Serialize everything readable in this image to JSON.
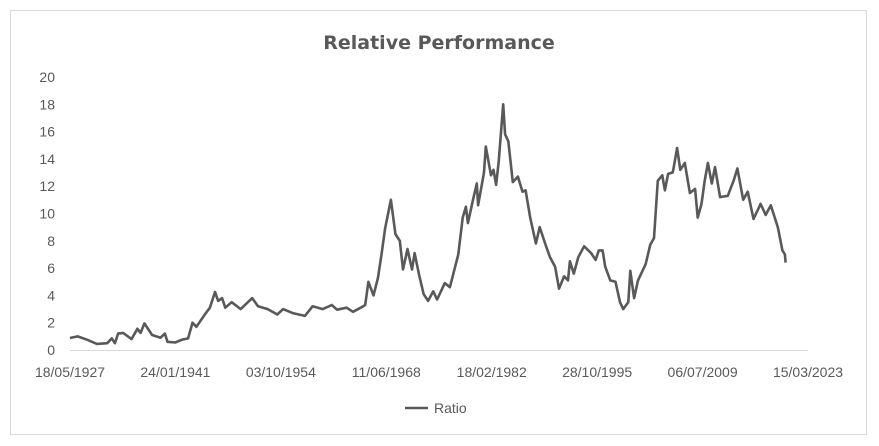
{
  "chart_data": {
    "type": "line",
    "title": "Relative Performance",
    "xlabel": "",
    "ylabel": "",
    "ylim": [
      0,
      20
    ],
    "yticks": [
      0,
      2,
      4,
      6,
      8,
      10,
      12,
      14,
      16,
      18,
      20
    ],
    "xlim": [
      "1927-05-18",
      "2023-03-15"
    ],
    "xticks": [
      {
        "date": "1927-05-18",
        "label": "18/05/1927"
      },
      {
        "date": "1941-01-24",
        "label": "24/01/1941"
      },
      {
        "date": "1954-10-03",
        "label": "03/10/1954"
      },
      {
        "date": "1968-06-11",
        "label": "11/06/1968"
      },
      {
        "date": "1982-02-18",
        "label": "18/02/1982"
      },
      {
        "date": "1995-10-28",
        "label": "28/10/1995"
      },
      {
        "date": "2009-07-06",
        "label": "06/07/2009"
      },
      {
        "date": "2023-03-15",
        "label": "15/03/2023"
      }
    ],
    "grid": false,
    "legend": "bottom",
    "line_color": "#595959",
    "series": [
      {
        "name": "Ratio",
        "x": [
          "1927-05",
          "1928-05",
          "1929-08",
          "1930-11",
          "1932-03",
          "1932-10",
          "1933-03",
          "1933-08",
          "1934-04",
          "1935-05",
          "1936-02",
          "1936-07",
          "1937-01",
          "1938-01",
          "1939-02",
          "1939-09",
          "1940-01",
          "1941-01",
          "1941-11",
          "1942-09",
          "1943-04",
          "1943-10",
          "1944-11",
          "1945-07",
          "1946-03",
          "1946-08",
          "1947-02",
          "1947-07",
          "1948-05",
          "1949-07",
          "1951-01",
          "1951-10",
          "1953-01",
          "1954-04",
          "1955-01",
          "1956-04",
          "1957-11",
          "1958-11",
          "1960-03",
          "1961-05",
          "1962-01",
          "1963-04",
          "1964-02",
          "1965-02",
          "1965-09",
          "1966-02",
          "1966-10",
          "1967-05",
          "1967-11",
          "1968-04",
          "1969-01",
          "1969-08",
          "1970-03",
          "1970-08",
          "1971-03",
          "1971-10",
          "1972-02",
          "1972-09",
          "1973-04",
          "1973-11",
          "1974-07",
          "1975-01",
          "1976-01",
          "1976-09",
          "1977-10",
          "1978-05",
          "1978-10",
          "1979-01",
          "1979-09",
          "1980-03",
          "1980-05",
          "1981-02",
          "1981-05",
          "1982-01",
          "1982-05",
          "1982-09",
          "1983-01",
          "1983-08",
          "1983-11",
          "1984-04",
          "1984-11",
          "1985-07",
          "1986-02",
          "1986-07",
          "1987-02",
          "1987-11",
          "1988-05",
          "1989-02",
          "1989-09",
          "1990-05",
          "1990-11",
          "1991-07",
          "1992-01",
          "1992-04",
          "1992-10",
          "1993-05",
          "1994-02",
          "1995-01",
          "1995-08",
          "1996-01",
          "1996-07",
          "1996-11",
          "1997-07",
          "1998-03",
          "1998-10",
          "1999-03",
          "1999-11",
          "2000-02",
          "2000-08",
          "2001-02",
          "2002-02",
          "2002-09",
          "2003-03",
          "2003-09",
          "2004-04",
          "2004-08",
          "2005-01",
          "2005-08",
          "2005-09",
          "2006-03",
          "2006-08",
          "2007-03",
          "2007-11",
          "2008-07",
          "2008-11",
          "2009-05",
          "2009-10",
          "2010-03",
          "2010-09",
          "2011-02",
          "2011-10",
          "2012-10",
          "2013-07",
          "2014-01",
          "2014-10",
          "2015-05",
          "2016-02",
          "2017-01",
          "2017-09",
          "2018-05",
          "2019-04",
          "2019-11",
          "2020-03",
          "2020-04"
        ],
        "values": [
          0.88,
          1.0,
          0.75,
          0.45,
          0.5,
          0.85,
          0.5,
          1.2,
          1.25,
          0.8,
          1.55,
          1.25,
          1.95,
          1.1,
          0.9,
          1.2,
          0.6,
          0.55,
          0.75,
          0.85,
          2.0,
          1.7,
          2.6,
          3.1,
          4.25,
          3.6,
          3.8,
          3.1,
          3.5,
          3.0,
          3.8,
          3.2,
          3.0,
          2.6,
          3.0,
          2.7,
          2.5,
          3.2,
          3.0,
          3.3,
          2.95,
          3.1,
          2.8,
          3.1,
          3.3,
          5.0,
          4.0,
          5.3,
          7.2,
          8.9,
          11.0,
          8.5,
          8.0,
          5.9,
          7.4,
          5.9,
          7.1,
          5.5,
          4.1,
          3.6,
          4.3,
          3.7,
          4.9,
          4.6,
          7.0,
          9.7,
          10.5,
          9.3,
          11.0,
          12.2,
          10.6,
          13.0,
          14.9,
          12.8,
          13.2,
          12.1,
          13.8,
          18.0,
          15.8,
          15.3,
          12.3,
          12.7,
          11.6,
          11.7,
          9.7,
          7.8,
          9.0,
          7.7,
          6.8,
          6.1,
          4.5,
          5.4,
          5.1,
          6.5,
          5.6,
          6.8,
          7.6,
          7.1,
          6.6,
          7.3,
          7.3,
          6.1,
          5.1,
          5.0,
          3.5,
          3.0,
          3.5,
          5.8,
          3.8,
          5.1,
          6.3,
          7.7,
          8.2,
          12.4,
          12.8,
          11.7,
          12.9,
          13.0,
          13.2,
          14.8,
          13.2,
          13.7,
          11.5,
          11.8,
          9.7,
          10.7,
          12.4,
          13.7,
          12.2,
          13.4,
          11.2,
          11.3,
          12.4,
          13.3,
          11.0,
          11.6,
          9.6,
          10.7,
          9.9,
          10.6,
          9.0,
          7.3,
          7.0,
          6.4
        ]
      }
    ]
  }
}
